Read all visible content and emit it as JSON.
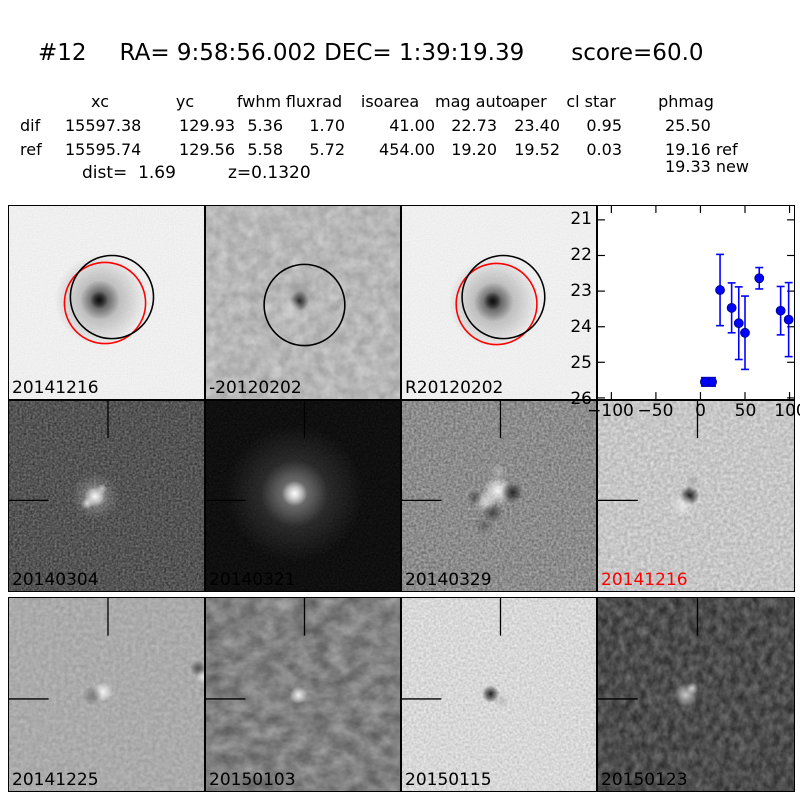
{
  "header": {
    "id": "#12",
    "ra_dec": "RA= 9:58:56.002 DEC= 1:39:19.39",
    "score": "score=60.0"
  },
  "table": {
    "columns": [
      "xc",
      "yc",
      "fwhm",
      "fluxrad",
      "isoarea",
      "mag auto",
      "aper",
      "cl star",
      "phmag"
    ],
    "rows": [
      {
        "name": "dif",
        "values": [
          "15597.38",
          "129.93",
          "5.36",
          "1.70",
          "41.00",
          "22.73",
          "23.40",
          "0.95",
          "25.50"
        ]
      },
      {
        "name": "ref",
        "values": [
          "15595.74",
          "129.56",
          "5.58",
          "5.72",
          "454.00",
          "19.20",
          "19.52",
          "0.03",
          "19.16 ref"
        ]
      }
    ],
    "extra_phmag": "19.33 new",
    "dist": "dist=  1.69",
    "z": "z=0.1320"
  },
  "cutouts": [
    {
      "label": "20141216",
      "label_color": "#000000"
    },
    {
      "label": "-20120202",
      "label_color": "#000000"
    },
    {
      "label": "R20120202",
      "label_color": "#000000"
    },
    {
      "label": "20140304",
      "label_color": "#000000"
    },
    {
      "label": "20140321",
      "label_color": "#000000"
    },
    {
      "label": "20140329",
      "label_color": "#000000"
    },
    {
      "label": "20141216",
      "label_color": "#ff0000"
    },
    {
      "label": "20141225",
      "label_color": "#000000"
    },
    {
      "label": "20150103",
      "label_color": "#000000"
    },
    {
      "label": "20150115",
      "label_color": "#000000"
    },
    {
      "label": "20150123",
      "label_color": "#000000"
    }
  ],
  "chart_data": {
    "type": "scatter",
    "title": "",
    "xlabel": "",
    "ylabel": "",
    "x_range": [
      -115,
      105
    ],
    "y_range_mag": [
      20.61,
      26.03
    ],
    "y_axis_inverted": true,
    "grid": false,
    "legend": "none",
    "xticks": [
      -100,
      -50,
      0,
      50,
      100
    ],
    "xtick_labels": [
      "−100",
      "−50",
      "0",
      "50",
      "100"
    ],
    "yticks": [
      21,
      22,
      23,
      24,
      25,
      26
    ],
    "ytick_labels": [
      "21",
      "22",
      "23",
      "24",
      "25",
      "26"
    ],
    "marker_color": "#0000ff",
    "points": [
      {
        "x": 5,
        "mag": 25.55,
        "err": 0.12
      },
      {
        "x": 13,
        "mag": 25.55,
        "err": 0.12
      },
      {
        "x": 22,
        "mag": 22.97,
        "err": 1.0
      },
      {
        "x": 35,
        "mag": 23.47,
        "err": 0.7
      },
      {
        "x": 43,
        "mag": 23.9,
        "err": 1.02
      },
      {
        "x": 50,
        "mag": 24.17,
        "err": 1.03
      },
      {
        "x": 66,
        "mag": 22.64,
        "err": 0.3
      },
      {
        "x": 90,
        "mag": 23.55,
        "err": 0.68
      },
      {
        "x": 99,
        "mag": 23.8,
        "err": 1.04
      }
    ]
  },
  "colors": {
    "circle_red": "#ff0000",
    "circle_black": "#000000",
    "highlight_label_red": "#ff0000",
    "marker_blue": "#0000ff"
  }
}
